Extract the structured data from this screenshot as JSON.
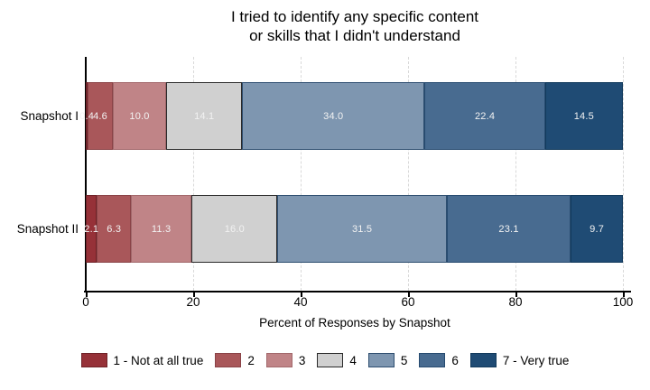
{
  "chart_data": {
    "type": "bar",
    "orientation": "horizontal-stacked",
    "title_line1": "I tried to identify any specific content",
    "title_line2": "or skills that I didn't understand",
    "xlabel": "Percent of Responses by Snapshot",
    "xlim": [
      0,
      100
    ],
    "x_ticks": [
      0,
      20,
      40,
      60,
      80,
      100
    ],
    "grid": "vertical-dashed-lines-at-ticks",
    "legend_position": "bottom",
    "value_label_format": "one-decimal",
    "series": [
      {
        "label": "1 - Not at all true",
        "fill": "#963138",
        "border": "#6f2228"
      },
      {
        "label": "2",
        "fill": "#a9575a",
        "border": "#8a4347"
      },
      {
        "label": "3",
        "fill": "#c08487",
        "border": "#a2686b"
      },
      {
        "label": "4",
        "fill": "#d0d0d0",
        "border": "#2a2a2a"
      },
      {
        "label": "5",
        "fill": "#7e96b0",
        "border": "#2e4e70"
      },
      {
        "label": "6",
        "fill": "#486b90",
        "border": "#274b70"
      },
      {
        "label": "7 - Very true",
        "fill": "#1f4b74",
        "border": "#123a5c"
      }
    ],
    "rows": [
      {
        "category": "Snapshot I",
        "values": [
          0.4,
          4.6,
          10.0,
          14.1,
          34.0,
          22.4,
          14.5
        ]
      },
      {
        "category": "Snapshot II",
        "values": [
          2.1,
          6.3,
          11.3,
          16.0,
          31.5,
          23.1,
          9.7
        ]
      }
    ]
  }
}
